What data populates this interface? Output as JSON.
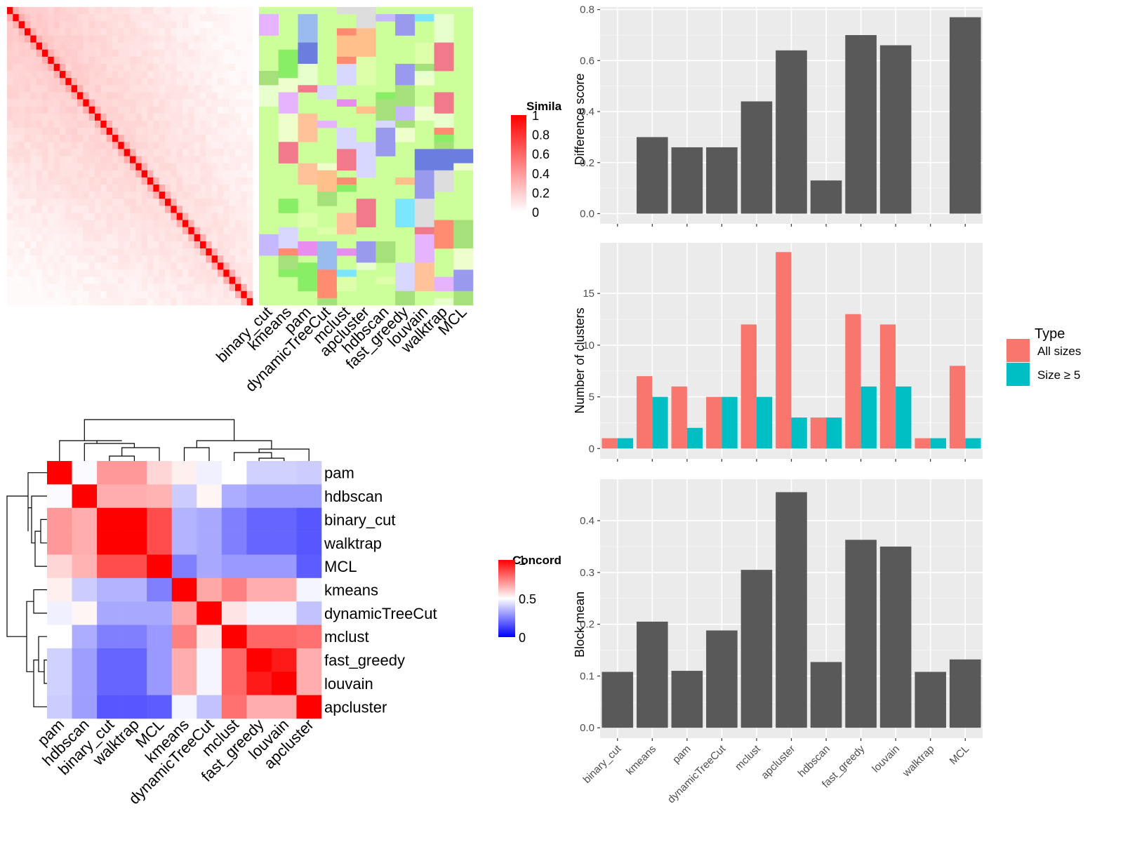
{
  "chart_data": [
    {
      "type": "heatmap",
      "id": "similarity_heatmap",
      "legend_title": "Similarity",
      "legend_title_visible": "Simila",
      "legend_ticks": [
        0,
        0.2,
        0.4,
        0.6,
        0.8,
        1
      ],
      "colors": {
        "low": "#ffffff",
        "high": "#ff0000"
      },
      "n_terms": 42,
      "annotation_columns": [
        "binary_cut",
        "kmeans",
        "pam",
        "dynamicTreeCut",
        "mclust",
        "apcluster",
        "hdbscan",
        "fast_greedy",
        "louvain",
        "walktrap",
        "MCL"
      ],
      "annotation_background": "#ccff99"
    },
    {
      "type": "heatmap",
      "id": "concordance_heatmap",
      "legend_title": "Concordance",
      "legend_title_visible": "Concord",
      "legend_ticks": [
        0,
        0.5,
        1
      ],
      "colors": {
        "low": "#0000ff",
        "mid": "#ffffff",
        "high": "#ff0000"
      },
      "rows": [
        "pam",
        "hdbscan",
        "binary_cut",
        "walktrap",
        "MCL",
        "kmeans",
        "dynamicTreeCut",
        "mclust",
        "fast_greedy",
        "louvain",
        "apcluster"
      ],
      "columns": [
        "pam",
        "hdbscan",
        "binary_cut",
        "walktrap",
        "MCL",
        "kmeans",
        "dynamicTreeCut",
        "mclust",
        "fast_greedy",
        "louvain",
        "apcluster"
      ],
      "values": [
        [
          1.0,
          0.49,
          0.7,
          0.7,
          0.58,
          0.53,
          0.47,
          0.5,
          0.41,
          0.41,
          0.4
        ],
        [
          0.49,
          1.0,
          0.66,
          0.66,
          0.65,
          0.4,
          0.52,
          0.34,
          0.31,
          0.31,
          0.31
        ],
        [
          0.7,
          0.66,
          1.0,
          1.0,
          0.85,
          0.35,
          0.33,
          0.25,
          0.2,
          0.2,
          0.17
        ],
        [
          0.7,
          0.66,
          1.0,
          1.0,
          0.85,
          0.35,
          0.33,
          0.25,
          0.2,
          0.2,
          0.17
        ],
        [
          0.58,
          0.65,
          0.85,
          0.85,
          1.0,
          0.25,
          0.33,
          0.3,
          0.3,
          0.3,
          0.18
        ],
        [
          0.53,
          0.4,
          0.35,
          0.35,
          0.25,
          1.0,
          0.67,
          0.75,
          0.66,
          0.66,
          0.48
        ],
        [
          0.47,
          0.52,
          0.33,
          0.33,
          0.33,
          0.67,
          1.0,
          0.55,
          0.48,
          0.48,
          0.38
        ],
        [
          0.5,
          0.34,
          0.25,
          0.25,
          0.3,
          0.75,
          0.55,
          1.0,
          0.8,
          0.8,
          0.78
        ],
        [
          0.41,
          0.31,
          0.2,
          0.2,
          0.3,
          0.66,
          0.48,
          0.8,
          1.0,
          0.95,
          0.66
        ],
        [
          0.41,
          0.31,
          0.2,
          0.2,
          0.3,
          0.66,
          0.48,
          0.8,
          0.95,
          1.0,
          0.66
        ],
        [
          0.4,
          0.31,
          0.17,
          0.17,
          0.18,
          0.48,
          0.38,
          0.78,
          0.66,
          0.66,
          1.0
        ]
      ]
    },
    {
      "type": "bar",
      "id": "difference_score",
      "ylabel": "Difference score",
      "categories": [
        "binary_cut",
        "kmeans",
        "pam",
        "dynamicTreeCut",
        "mclust",
        "apcluster",
        "hdbscan",
        "fast_greedy",
        "louvain",
        "walktrap",
        "MCL"
      ],
      "values": [
        0,
        0.3,
        0.26,
        0.26,
        0.44,
        0.64,
        0.13,
        0.7,
        0.66,
        0,
        0.77
      ],
      "ylim": [
        -0.04,
        0.81
      ],
      "yticks": [
        "0.0",
        "0.2",
        "0.4",
        "0.6",
        "0.8"
      ],
      "bar_color": "#595959",
      "grid": true
    },
    {
      "type": "bar",
      "id": "number_of_clusters",
      "ylabel": "Number of clusters",
      "categories": [
        "binary_cut",
        "kmeans",
        "pam",
        "dynamicTreeCut",
        "mclust",
        "apcluster",
        "hdbscan",
        "fast_greedy",
        "louvain",
        "walktrap",
        "MCL"
      ],
      "series": [
        {
          "name": "All sizes",
          "color": "#f8766d",
          "values": [
            1,
            7,
            6,
            5,
            12,
            19,
            3,
            13,
            12,
            1,
            8
          ]
        },
        {
          "name": "Size ≥ 5",
          "color": "#00bfc4",
          "values": [
            1,
            5,
            2,
            5,
            5,
            3,
            3,
            6,
            6,
            1,
            1
          ]
        }
      ],
      "ylim": [
        -1,
        19.9
      ],
      "yticks": [
        "0",
        "5",
        "10",
        "15"
      ],
      "legend_title": "Type",
      "legend_position": "right",
      "grid": true
    },
    {
      "type": "bar",
      "id": "block_mean",
      "ylabel": "Block mean",
      "categories": [
        "binary_cut",
        "kmeans",
        "pam",
        "dynamicTreeCut",
        "mclust",
        "apcluster",
        "hdbscan",
        "fast_greedy",
        "louvain",
        "walktrap",
        "MCL"
      ],
      "values": [
        0.108,
        0.205,
        0.11,
        0.188,
        0.305,
        0.455,
        0.127,
        0.363,
        0.35,
        0.108,
        0.132
      ],
      "ylim": [
        -0.02,
        0.48
      ],
      "yticks": [
        "0.0",
        "0.1",
        "0.2",
        "0.3",
        "0.4"
      ],
      "bar_color": "#595959",
      "grid": true
    }
  ]
}
